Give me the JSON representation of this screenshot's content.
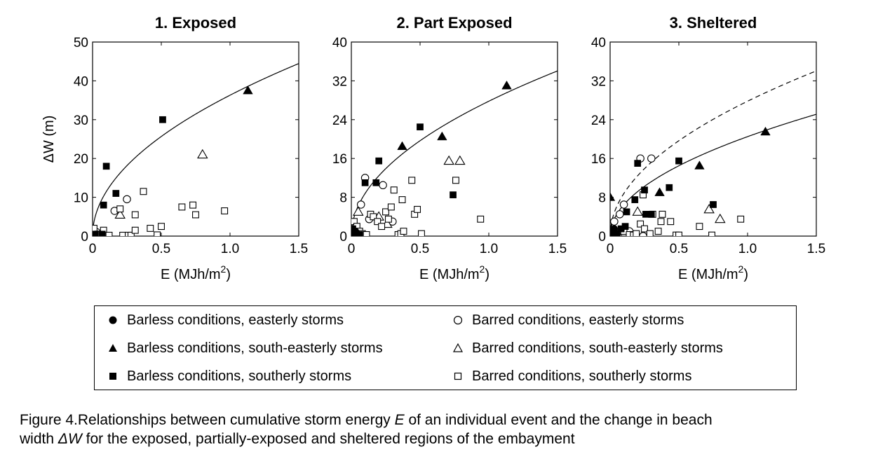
{
  "chart_data": [
    {
      "type": "scatter",
      "title": "1. Exposed",
      "xlabel": "E (MJh/m2)",
      "ylabel": "ΔW (m)",
      "xlim": [
        0,
        1.5
      ],
      "ylim": [
        0,
        50
      ],
      "xticks": [
        "0",
        "0.5",
        "1.0",
        "1.5"
      ],
      "yticks": [
        "0",
        "10",
        "20",
        "30",
        "40",
        "50"
      ],
      "grid": false,
      "series": [
        {
          "name": "Barless conditions, easterly storms",
          "marker": "filled-circle",
          "points": []
        },
        {
          "name": "Barred conditions, easterly storms",
          "marker": "open-circle",
          "points": [
            [
              0.03,
              1.0
            ],
            [
              0.16,
              6.5
            ],
            [
              0.25,
              9.5
            ]
          ]
        },
        {
          "name": "Barless conditions, south-easterly storms",
          "marker": "filled-triangle",
          "points": [
            [
              1.13,
              37.5
            ]
          ]
        },
        {
          "name": "Barred conditions, south-easterly storms",
          "marker": "open-triangle",
          "points": [
            [
              0.2,
              5.5
            ],
            [
              0.8,
              21.0
            ]
          ]
        },
        {
          "name": "Barless conditions, southerly storms",
          "marker": "filled-square",
          "points": [
            [
              0.02,
              0.5
            ],
            [
              0.07,
              0.5
            ],
            [
              0.08,
              8.0
            ],
            [
              0.1,
              18.0
            ],
            [
              0.17,
              11.0
            ],
            [
              0.51,
              30.0
            ]
          ]
        },
        {
          "name": "Barred conditions, southerly storms",
          "marker": "open-square",
          "points": [
            [
              0.01,
              2.0
            ],
            [
              0.04,
              0.5
            ],
            [
              0.08,
              1.5
            ],
            [
              0.12,
              0.2
            ],
            [
              0.2,
              7.0
            ],
            [
              0.22,
              0.2
            ],
            [
              0.26,
              0.2
            ],
            [
              0.28,
              0.2
            ],
            [
              0.31,
              1.5
            ],
            [
              0.31,
              5.5
            ],
            [
              0.37,
              11.5
            ],
            [
              0.42,
              2.0
            ],
            [
              0.47,
              0.3
            ],
            [
              0.5,
              2.5
            ],
            [
              0.65,
              7.5
            ],
            [
              0.73,
              8.0
            ],
            [
              0.75,
              5.5
            ],
            [
              0.96,
              6.5
            ]
          ]
        }
      ],
      "curves": [
        {
          "style": "solid",
          "formula": "a*sqrt(x)",
          "a": 36.3
        }
      ]
    },
    {
      "type": "scatter",
      "title": "2. Part Exposed",
      "xlabel": "E (MJh/m2)",
      "ylabel": "",
      "xlim": [
        0,
        1.5
      ],
      "ylim": [
        0,
        40
      ],
      "xticks": [
        "0",
        "0.5",
        "1.0",
        "1.5"
      ],
      "yticks": [
        "0",
        "8",
        "16",
        "24",
        "32",
        "40"
      ],
      "grid": false,
      "series": [
        {
          "name": "Barless conditions, easterly storms",
          "marker": "filled-circle",
          "points": [
            [
              0.01,
              0.5
            ],
            [
              0.03,
              1.0
            ]
          ]
        },
        {
          "name": "Barred conditions, easterly storms",
          "marker": "open-circle",
          "points": [
            [
              0.07,
              6.5
            ],
            [
              0.1,
              12.0
            ],
            [
              0.13,
              3.5
            ],
            [
              0.23,
              10.5
            ],
            [
              0.3,
              3.0
            ]
          ]
        },
        {
          "name": "Barless conditions, south-easterly storms",
          "marker": "filled-triangle",
          "points": [
            [
              0.37,
              18.5
            ],
            [
              0.66,
              20.5
            ],
            [
              1.13,
              31.0
            ]
          ]
        },
        {
          "name": "Barred conditions, south-easterly storms",
          "marker": "open-triangle",
          "points": [
            [
              0.05,
              5.0
            ],
            [
              0.2,
              4.0
            ],
            [
              0.26,
              2.5
            ],
            [
              0.71,
              15.5
            ],
            [
              0.79,
              15.5
            ]
          ]
        },
        {
          "name": "Barless conditions, southerly storms",
          "marker": "filled-square",
          "points": [
            [
              0.01,
              1.5
            ],
            [
              0.03,
              0.5
            ],
            [
              0.06,
              0.3
            ],
            [
              0.1,
              11.0
            ],
            [
              0.18,
              11.0
            ],
            [
              0.2,
              15.5
            ],
            [
              0.5,
              22.5
            ],
            [
              0.74,
              8.5
            ]
          ]
        },
        {
          "name": "Barred conditions, southerly storms",
          "marker": "open-square",
          "points": [
            [
              0.02,
              3.0
            ],
            [
              0.04,
              2.0
            ],
            [
              0.06,
              1.0
            ],
            [
              0.08,
              0.5
            ],
            [
              0.11,
              0.3
            ],
            [
              0.14,
              4.5
            ],
            [
              0.16,
              4.0
            ],
            [
              0.19,
              3.0
            ],
            [
              0.22,
              2.0
            ],
            [
              0.25,
              5.0
            ],
            [
              0.27,
              3.5
            ],
            [
              0.29,
              6.0
            ],
            [
              0.31,
              9.5
            ],
            [
              0.34,
              0.3
            ],
            [
              0.36,
              0.5
            ],
            [
              0.37,
              7.5
            ],
            [
              0.38,
              1.0
            ],
            [
              0.44,
              11.5
            ],
            [
              0.46,
              4.5
            ],
            [
              0.48,
              5.5
            ],
            [
              0.51,
              0.5
            ],
            [
              0.76,
              11.5
            ],
            [
              0.94,
              3.5
            ]
          ]
        }
      ],
      "curves": [
        {
          "style": "solid",
          "formula": "a*sqrt(x)",
          "a": 27.8
        }
      ]
    },
    {
      "type": "scatter",
      "title": "3. Sheltered",
      "xlabel": "E (MJh/m2)",
      "ylabel": "",
      "xlim": [
        0,
        1.5
      ],
      "ylim": [
        0,
        40
      ],
      "xticks": [
        "0",
        "0.5",
        "1.0",
        "1.5"
      ],
      "yticks": [
        "0",
        "8",
        "16",
        "24",
        "32",
        "40"
      ],
      "grid": false,
      "series": [
        {
          "name": "Barless conditions, easterly storms",
          "marker": "filled-circle",
          "points": [
            [
              0.01,
              0.5
            ],
            [
              0.03,
              1.5
            ],
            [
              0.05,
              0.3
            ]
          ]
        },
        {
          "name": "Barred conditions, easterly storms",
          "marker": "open-circle",
          "points": [
            [
              0.03,
              3.0
            ],
            [
              0.07,
              4.5
            ],
            [
              0.1,
              6.5
            ],
            [
              0.14,
              1.0
            ],
            [
              0.22,
              16.0
            ],
            [
              0.24,
              0.0
            ],
            [
              0.3,
              16.0
            ]
          ]
        },
        {
          "name": "Barless conditions, south-easterly storms",
          "marker": "filled-triangle",
          "points": [
            [
              0.0,
              8.0
            ],
            [
              0.36,
              9.0
            ],
            [
              0.65,
              14.5
            ],
            [
              1.13,
              21.5
            ]
          ]
        },
        {
          "name": "Barred conditions, south-easterly storms",
          "marker": "open-triangle",
          "points": [
            [
              0.2,
              5.0
            ],
            [
              0.72,
              5.5
            ],
            [
              0.8,
              3.5
            ]
          ]
        },
        {
          "name": "Barless conditions, southerly storms",
          "marker": "filled-square",
          "points": [
            [
              0.02,
              1.0
            ],
            [
              0.05,
              0.5
            ],
            [
              0.08,
              1.5
            ],
            [
              0.11,
              2.0
            ],
            [
              0.12,
              5.0
            ],
            [
              0.18,
              7.5
            ],
            [
              0.2,
              15.0
            ],
            [
              0.25,
              9.5
            ],
            [
              0.26,
              4.5
            ],
            [
              0.3,
              4.5
            ],
            [
              0.43,
              10.0
            ],
            [
              0.5,
              15.5
            ],
            [
              0.75,
              6.5
            ]
          ]
        },
        {
          "name": "Barred conditions, southerly storms",
          "marker": "open-square",
          "points": [
            [
              0.02,
              0.3
            ],
            [
              0.06,
              0.5
            ],
            [
              0.1,
              1.0
            ],
            [
              0.14,
              0.3
            ],
            [
              0.17,
              0.2
            ],
            [
              0.19,
              0.5
            ],
            [
              0.22,
              2.5
            ],
            [
              0.24,
              8.5
            ],
            [
              0.25,
              1.5
            ],
            [
              0.29,
              0.5
            ],
            [
              0.31,
              4.5
            ],
            [
              0.35,
              1.0
            ],
            [
              0.37,
              3.0
            ],
            [
              0.38,
              4.5
            ],
            [
              0.44,
              3.0
            ],
            [
              0.48,
              0.2
            ],
            [
              0.5,
              0.2
            ],
            [
              0.65,
              2.0
            ],
            [
              0.74,
              0.2
            ],
            [
              0.95,
              3.5
            ]
          ]
        }
      ],
      "curves": [
        {
          "style": "dashed",
          "formula": "a*sqrt(x)",
          "a": 27.8
        },
        {
          "style": "solid",
          "formula": "a*sqrt(x)",
          "a": 20.5
        }
      ]
    }
  ],
  "legend": {
    "items": [
      {
        "marker": "filled-circle",
        "label": "Barless conditions, easterly storms"
      },
      {
        "marker": "open-circle",
        "label": "Barred conditions, easterly storms"
      },
      {
        "marker": "filled-triangle",
        "label": "Barless conditions, south-easterly storms"
      },
      {
        "marker": "open-triangle",
        "label": "Barred conditions, south-easterly storms"
      },
      {
        "marker": "filled-square",
        "label": "Barless conditions, southerly storms"
      },
      {
        "marker": "open-square",
        "label": "Barred conditions, southerly storms"
      }
    ]
  },
  "caption": {
    "line1_prefix": "Figure 4.Relationships between cumulative storm energy ",
    "line1_var": "E",
    "line1_suffix": " of an individual event and the change in beach",
    "line2_prefix": "width ",
    "line2_var": "ΔW",
    "line2_suffix": " for the exposed, partially-exposed and sheltered regions of the embayment"
  }
}
